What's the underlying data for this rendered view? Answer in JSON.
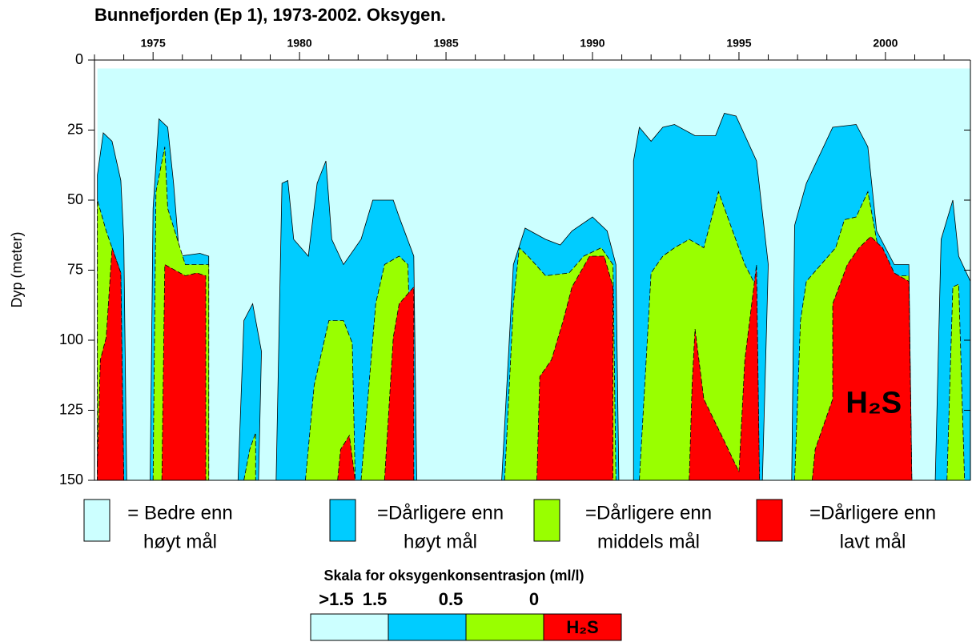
{
  "chart_data": {
    "type": "contour",
    "title": "Bunnefjorden (Ep 1), 1973-2002. Oksygen.",
    "y_label": "Dyp (meter)",
    "xlim": [
      1973,
      2002.9
    ],
    "ylim": [
      0,
      150
    ],
    "y_inverted": true,
    "xticks": [
      1975,
      1980,
      1985,
      1990,
      1995,
      2000
    ],
    "minor_xticks": [
      1973,
      1974,
      1976,
      1977,
      1978,
      1979,
      1981,
      1982,
      1983,
      1984,
      1986,
      1987,
      1988,
      1989,
      1991,
      1992,
      1993,
      1994,
      1996,
      1997,
      1998,
      1999,
      2001,
      2002
    ],
    "yticks": [
      0,
      25,
      50,
      75,
      100,
      125,
      150
    ],
    "levels": [
      {
        "name": [
          "= Bedre enn",
          "høyt mål"
        ],
        "color": "#ccffff"
      },
      {
        "name": [
          "=Dårligere enn",
          "høyt mål"
        ],
        "color": "#00ccff"
      },
      {
        "name": [
          "=Dårligere enn",
          "middels mål"
        ],
        "color": "#99ff00"
      },
      {
        "name": [
          "=Dårligere enn",
          "lavt mål"
        ],
        "color": "#ff0000"
      }
    ],
    "regions": [
      {
        "level": 0,
        "x": [
          1973.1,
          2002.9,
          2002.9,
          1973.1
        ],
        "y": [
          3,
          3,
          150,
          150
        ]
      },
      {
        "level": 1,
        "x": [
          1973.1,
          1973.3,
          1973.6,
          1973.9,
          1974.0,
          1974.1,
          1973.1
        ],
        "y": [
          41,
          26,
          29,
          43,
          64,
          150,
          150
        ]
      },
      {
        "level": 1,
        "x": [
          1974.9,
          1975.0,
          1975.2,
          1975.5,
          1975.7,
          1975.9,
          1976.6,
          1976.9,
          1976.9
        ],
        "y": [
          150,
          53,
          21,
          24,
          44,
          70,
          69,
          70,
          150
        ]
      },
      {
        "level": 1,
        "x": [
          1977.9,
          1978.1,
          1978.4,
          1978.7,
          1978.6
        ],
        "y": [
          150,
          93,
          87,
          104,
          150
        ]
      },
      {
        "level": 1,
        "x": [
          1979.2,
          1979.4,
          1979.6,
          1979.8,
          1980.3,
          1980.6,
          1980.9,
          1981.1,
          1981.5,
          1982.1,
          1982.5,
          1983.2,
          1983.4,
          1983.9,
          1984.0
        ],
        "y": [
          150,
          44,
          43,
          64,
          70,
          44,
          36,
          64,
          73,
          64,
          50,
          50,
          56,
          70,
          150
        ]
      },
      {
        "level": 1,
        "x": [
          1986.9,
          1987.3,
          1987.7,
          1988.4,
          1988.9,
          1989.3,
          1990.0,
          1990.5,
          1990.8,
          1990.9
        ],
        "y": [
          150,
          73,
          60,
          64,
          66,
          61,
          56,
          61,
          73,
          150
        ]
      },
      {
        "level": 1,
        "x": [
          1991.4,
          1991.4,
          1991.6,
          1992.0,
          1992.4,
          1992.8,
          1993.5,
          1994.2,
          1994.5,
          1994.9,
          1995.6,
          1996.0,
          1995.8
        ],
        "y": [
          150,
          36,
          24,
          29,
          24,
          23,
          27,
          27,
          19,
          20,
          36,
          73,
          150
        ]
      },
      {
        "level": 1,
        "x": [
          1996.8,
          1996.9,
          1997.3,
          1998.2,
          1999.0,
          1999.4,
          1999.7,
          2000.3,
          2000.8,
          2000.9
        ],
        "y": [
          150,
          59,
          44,
          24,
          23,
          31,
          61,
          73,
          73,
          150
        ]
      },
      {
        "level": 1,
        "x": [
          2001.7,
          2001.9,
          2002.3,
          2002.5,
          2002.9,
          2002.9
        ],
        "y": [
          150,
          64,
          50,
          70,
          79,
          150
        ]
      },
      {
        "level": 2,
        "x": [
          1973.1,
          1973.1,
          1973.4,
          1973.9,
          1974.0
        ],
        "y": [
          150,
          50,
          61,
          76,
          150
        ]
      },
      {
        "level": 2,
        "x": [
          1975.0,
          1975.1,
          1975.4,
          1975.5,
          1976.1,
          1976.9,
          1976.9
        ],
        "y": [
          150,
          47,
          31,
          53,
          73,
          73,
          150
        ]
      },
      {
        "level": 2,
        "x": [
          1978.1,
          1978.3,
          1978.5,
          1978.5
        ],
        "y": [
          150,
          139,
          133,
          150
        ]
      },
      {
        "level": 2,
        "x": [
          1980.2,
          1980.5,
          1981.0,
          1981.5,
          1981.8,
          1981.9
        ],
        "y": [
          150,
          116,
          93,
          93,
          101,
          150
        ]
      },
      {
        "level": 2,
        "x": [
          1982.1,
          1982.6,
          1982.9,
          1983.4,
          1983.7,
          1983.9
        ],
        "y": [
          150,
          87,
          73,
          70,
          73,
          150
        ]
      },
      {
        "level": 2,
        "x": [
          1987.0,
          1987.3,
          1987.5,
          1987.8,
          1988.4,
          1989.2,
          1989.7,
          1990.3,
          1990.7,
          1990.8
        ],
        "y": [
          150,
          87,
          67,
          70,
          77,
          76,
          70,
          67,
          73,
          150
        ]
      },
      {
        "level": 2,
        "x": [
          1991.6,
          1992.0,
          1992.4,
          1992.8,
          1993.3,
          1993.8,
          1994.3,
          1995.2,
          1995.6,
          1995.7
        ],
        "y": [
          150,
          76,
          70,
          67,
          64,
          67,
          47,
          73,
          81,
          150
        ]
      },
      {
        "level": 2,
        "x": [
          1996.9,
          1997.1,
          1997.3,
          1997.8,
          1998.3,
          1998.6,
          1999.0,
          1999.4,
          1999.8,
          2000.3,
          2000.8,
          2000.9
        ],
        "y": [
          150,
          93,
          79,
          73,
          67,
          57,
          56,
          47,
          70,
          77,
          77,
          150
        ]
      },
      {
        "level": 2,
        "x": [
          2002.1,
          2002.3,
          2002.5,
          2002.7
        ],
        "y": [
          150,
          81,
          80,
          150
        ]
      },
      {
        "level": 3,
        "x": [
          1973.1,
          1973.2,
          1973.4,
          1973.6,
          1973.9,
          1974.0,
          1973.1
        ],
        "y": [
          144,
          107,
          99,
          67,
          76,
          150,
          150
        ]
      },
      {
        "level": 3,
        "x": [
          1975.3,
          1975.4,
          1976.1,
          1976.5,
          1976.8,
          1976.8
        ],
        "y": [
          150,
          73,
          77,
          76,
          77,
          150
        ]
      },
      {
        "level": 3,
        "x": [
          1981.3,
          1981.4,
          1981.7,
          1981.9
        ],
        "y": [
          150,
          139,
          134,
          150
        ]
      },
      {
        "level": 3,
        "x": [
          1982.9,
          1983.2,
          1983.4,
          1983.9,
          1983.9
        ],
        "y": [
          150,
          99,
          87,
          81,
          150
        ]
      },
      {
        "level": 3,
        "x": [
          1988.1,
          1988.2,
          1988.6,
          1989.0,
          1989.3,
          1989.9,
          1990.4,
          1990.7,
          1990.7
        ],
        "y": [
          150,
          113,
          107,
          93,
          81,
          70,
          70,
          81,
          150
        ]
      },
      {
        "level": 3,
        "x": [
          1993.3,
          1993.4,
          1993.5,
          1993.8,
          1994.5,
          1995.0,
          1995.2,
          1995.6,
          1995.7
        ],
        "y": [
          150,
          116,
          96,
          121,
          136,
          147,
          107,
          73,
          150
        ]
      },
      {
        "level": 3,
        "x": [
          1997.5,
          1997.6,
          1998.2,
          1998.2,
          1998.7,
          1999.1,
          1999.5,
          1999.9,
          2000.3,
          2000.8,
          2000.9
        ],
        "y": [
          150,
          139,
          121,
          87,
          73,
          67,
          63,
          67,
          76,
          79,
          150
        ]
      }
    ],
    "annotation": {
      "text": "H₂S",
      "x": 1999.6,
      "y": 123
    },
    "scale": {
      "title": "Skala for oksygenkonsentrasjon (ml/l)",
      "labels": [
        ">1.5",
        "1.5",
        "0.5",
        "0"
      ]
    }
  }
}
